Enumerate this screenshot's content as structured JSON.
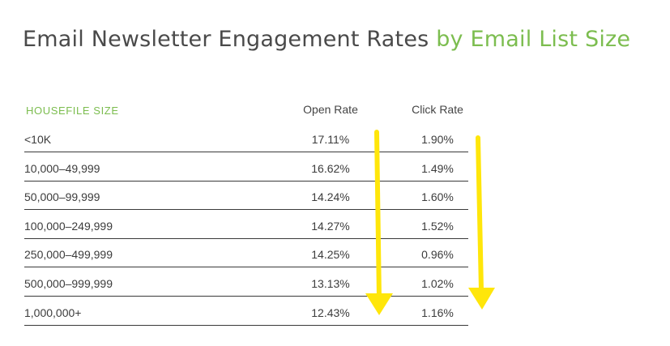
{
  "title": {
    "main": "Email Newsletter Engagement Rates ",
    "accent": "by Email List Size"
  },
  "colors": {
    "accent": "#7cbd4f",
    "arrow": "#ffe60a",
    "text": "#3c3c3c"
  },
  "chart_data": {
    "type": "table",
    "title": "Email Newsletter Engagement Rates by Email List Size",
    "columns": [
      "HOUSEFILE SIZE",
      "Open Rate",
      "Click Rate"
    ],
    "rows": [
      {
        "size": "<10K",
        "open_rate": "17.11%",
        "click_rate": "1.90%"
      },
      {
        "size": "10,000–49,999",
        "open_rate": "16.62%",
        "click_rate": "1.49%"
      },
      {
        "size": "50,000–99,999",
        "open_rate": "14.24%",
        "click_rate": "1.60%"
      },
      {
        "size": "100,000–249,999",
        "open_rate": "14.27%",
        "click_rate": "1.52%"
      },
      {
        "size": "250,000–499,999",
        "open_rate": "14.25%",
        "click_rate": "0.96%"
      },
      {
        "size": "500,000–999,999",
        "open_rate": "13.13%",
        "click_rate": "1.02%"
      },
      {
        "size": "1,000,000+",
        "open_rate": "12.43%",
        "click_rate": "1.16%"
      }
    ],
    "annotations": [
      "downward-arrow-open-rate",
      "downward-arrow-click-rate"
    ]
  }
}
